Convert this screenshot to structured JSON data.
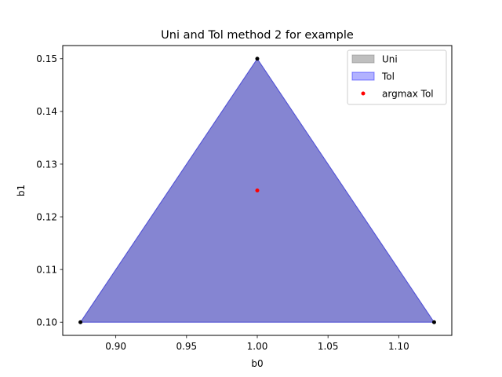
{
  "chart_data": {
    "type": "polygon",
    "title": "Uni and Tol method 2 for example",
    "xlabel": "b0",
    "ylabel": "b1",
    "xlim": [
      0.8625,
      1.1375
    ],
    "ylim": [
      0.0975,
      0.1525
    ],
    "xticks": [
      "0.90",
      "0.95",
      "1.00",
      "1.05",
      "1.10"
    ],
    "xtick_values": [
      0.9,
      0.95,
      1.0,
      1.05,
      1.1
    ],
    "yticks": [
      "0.10",
      "0.11",
      "0.12",
      "0.13",
      "0.14",
      "0.15"
    ],
    "ytick_values": [
      0.1,
      0.11,
      0.12,
      0.13,
      0.14,
      0.15
    ],
    "grid": false,
    "legend_position": "top-right",
    "series": [
      {
        "name": "Uni",
        "kind": "filled-polygon",
        "color": "#808080",
        "vertices": [
          [
            0.875,
            0.1
          ],
          [
            1.0,
            0.15
          ],
          [
            1.125,
            0.1
          ]
        ]
      },
      {
        "name": "Tol",
        "kind": "filled-polygon",
        "color": "#0000ff",
        "vertices": [
          [
            0.875,
            0.1
          ],
          [
            1.0,
            0.15
          ],
          [
            1.125,
            0.1
          ]
        ]
      },
      {
        "name": "argmax Tol",
        "kind": "scatter",
        "color": "#ff0000",
        "points": [
          [
            1.0,
            0.125
          ]
        ]
      }
    ],
    "vertex_markers": {
      "color": "#000000",
      "points": [
        [
          0.875,
          0.1
        ],
        [
          1.0,
          0.15
        ],
        [
          1.125,
          0.1
        ]
      ]
    }
  }
}
